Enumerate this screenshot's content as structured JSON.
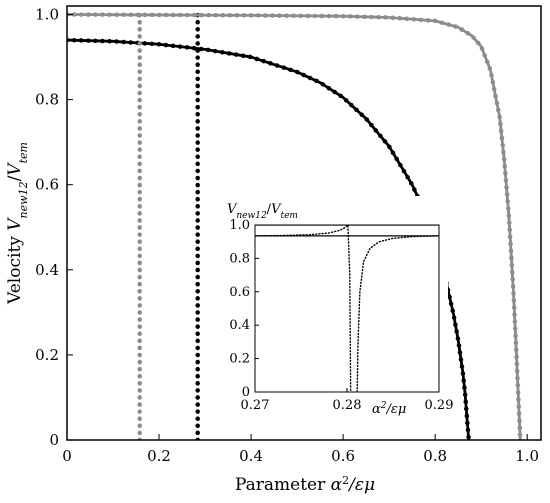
{
  "chart_data": [
    {
      "type": "line",
      "xlabel": "Parameter α²/εμ",
      "ylabel": "Velocity V_new12/V_tem",
      "xlabel_parts": {
        "pre": "Parameter ",
        "var": "α",
        "sup": "2",
        "post": "/εμ"
      },
      "ylabel_parts": {
        "pre": "Velocity ",
        "v1": "V",
        "s1": "new12",
        "mid": "/",
        "v2": "V",
        "s2": "tem"
      },
      "xlim": [
        0,
        1.03
      ],
      "ylim": [
        0,
        1.02
      ],
      "xticks": [
        0,
        0.2,
        0.4,
        0.6,
        0.8,
        1.0
      ],
      "xtick_labels": [
        "0",
        "0.2",
        "0.4",
        "0.6",
        "0.8",
        "1.0"
      ],
      "yticks": [
        0,
        0.2,
        0.4,
        0.6,
        0.8,
        1.0
      ],
      "ytick_labels": [
        "0",
        "0.2",
        "0.4",
        "0.6",
        "0.8",
        "1.0"
      ],
      "grid": false,
      "series": [
        {
          "color": "#000000",
          "style": "solid",
          "width": 2.8,
          "x": [
            0,
            0.1,
            0.2,
            0.3,
            0.4,
            0.5,
            0.55,
            0.6,
            0.65,
            0.7,
            0.75,
            0.78,
            0.8,
            0.82,
            0.84,
            0.85,
            0.86,
            0.865,
            0.87,
            0.873
          ],
          "y": [
            0.94,
            0.937,
            0.93,
            0.918,
            0.9,
            0.865,
            0.84,
            0.805,
            0.755,
            0.69,
            0.6,
            0.53,
            0.47,
            0.39,
            0.295,
            0.235,
            0.16,
            0.11,
            0.04,
            0
          ]
        },
        {
          "color": "#000000",
          "style": "dotted",
          "width": 4.5,
          "x": [
            0,
            0.1,
            0.2,
            0.3,
            0.4,
            0.5,
            0.55,
            0.6,
            0.65,
            0.7,
            0.75,
            0.78,
            0.8,
            0.82,
            0.84,
            0.85,
            0.86,
            0.865,
            0.87,
            0.873
          ],
          "y": [
            0.94,
            0.937,
            0.93,
            0.918,
            0.9,
            0.865,
            0.84,
            0.805,
            0.755,
            0.69,
            0.6,
            0.53,
            0.47,
            0.39,
            0.295,
            0.235,
            0.16,
            0.11,
            0.04,
            0
          ]
        },
        {
          "color": "#000000",
          "style": "dotted",
          "width": 4.5,
          "x": [
            0.284,
            0.284
          ],
          "y": [
            0,
            1.0
          ]
        },
        {
          "color": "#8c8c8c",
          "style": "solid",
          "width": 2.8,
          "x": [
            0,
            0.2,
            0.4,
            0.6,
            0.7,
            0.8,
            0.85,
            0.88,
            0.9,
            0.92,
            0.94,
            0.95,
            0.96,
            0.97,
            0.975,
            0.98,
            0.985
          ],
          "y": [
            1.0,
            0.999,
            0.998,
            0.996,
            0.993,
            0.985,
            0.97,
            0.95,
            0.925,
            0.87,
            0.76,
            0.66,
            0.53,
            0.35,
            0.24,
            0.12,
            0
          ]
        },
        {
          "color": "#8c8c8c",
          "style": "dotted",
          "width": 4.5,
          "x": [
            0,
            0.2,
            0.4,
            0.6,
            0.7,
            0.8,
            0.85,
            0.88,
            0.9,
            0.92,
            0.94,
            0.95,
            0.96,
            0.97,
            0.975,
            0.98,
            0.985
          ],
          "y": [
            1.0,
            0.999,
            0.998,
            0.996,
            0.993,
            0.985,
            0.97,
            0.95,
            0.925,
            0.87,
            0.76,
            0.66,
            0.53,
            0.35,
            0.24,
            0.12,
            0
          ]
        },
        {
          "color": "#8c8c8c",
          "style": "dotted",
          "width": 4.5,
          "x": [
            0.158,
            0.158
          ],
          "y": [
            0,
            1.0
          ]
        }
      ]
    },
    {
      "type": "line",
      "inset": true,
      "ylabel": "V_new12/V_tem",
      "xlabel": "α²/εμ",
      "ylabel_parts": {
        "v1": "V",
        "s1": "new12",
        "mid": "/",
        "v2": "V",
        "s2": "tem"
      },
      "xlabel_parts": {
        "var": "α",
        "sup": "2",
        "post": "/εμ"
      },
      "xlim": [
        0.27,
        0.29
      ],
      "ylim": [
        0,
        1.0
      ],
      "xticks": [
        0.27,
        0.28,
        0.29
      ],
      "xtick_labels": [
        "0.27",
        "0.28",
        "0.29"
      ],
      "yticks": [
        0,
        0.2,
        0.4,
        0.6,
        0.8,
        1.0
      ],
      "ytick_labels": [
        "0",
        "0.2",
        "0.4",
        "0.6",
        "0.8",
        "1.0"
      ],
      "series": [
        {
          "color": "#000000",
          "style": "solid",
          "width": 1.2,
          "x": [
            0.27,
            0.29
          ],
          "y": [
            1.0,
            1.0
          ]
        },
        {
          "color": "#000000",
          "style": "solid",
          "width": 1.2,
          "x": [
            0.27,
            0.29
          ],
          "y": [
            0.935,
            0.935
          ]
        },
        {
          "color": "#000000",
          "style": "dotted",
          "width": 1.4,
          "x": [
            0.27,
            0.273,
            0.276,
            0.278,
            0.279,
            0.2795,
            0.2799,
            0.2801,
            0.2803,
            0.2804
          ],
          "y": [
            0.935,
            0.937,
            0.942,
            0.952,
            0.965,
            0.975,
            0.99,
            1.0,
            0.7,
            0.0
          ]
        },
        {
          "color": "#000000",
          "style": "dotted",
          "width": 1.4,
          "x": [
            0.2811,
            0.2812,
            0.2814,
            0.2818,
            0.2825,
            0.2835,
            0.285,
            0.287,
            0.29
          ],
          "y": [
            0.0,
            0.3,
            0.6,
            0.78,
            0.86,
            0.9,
            0.92,
            0.93,
            0.935
          ]
        }
      ]
    }
  ]
}
